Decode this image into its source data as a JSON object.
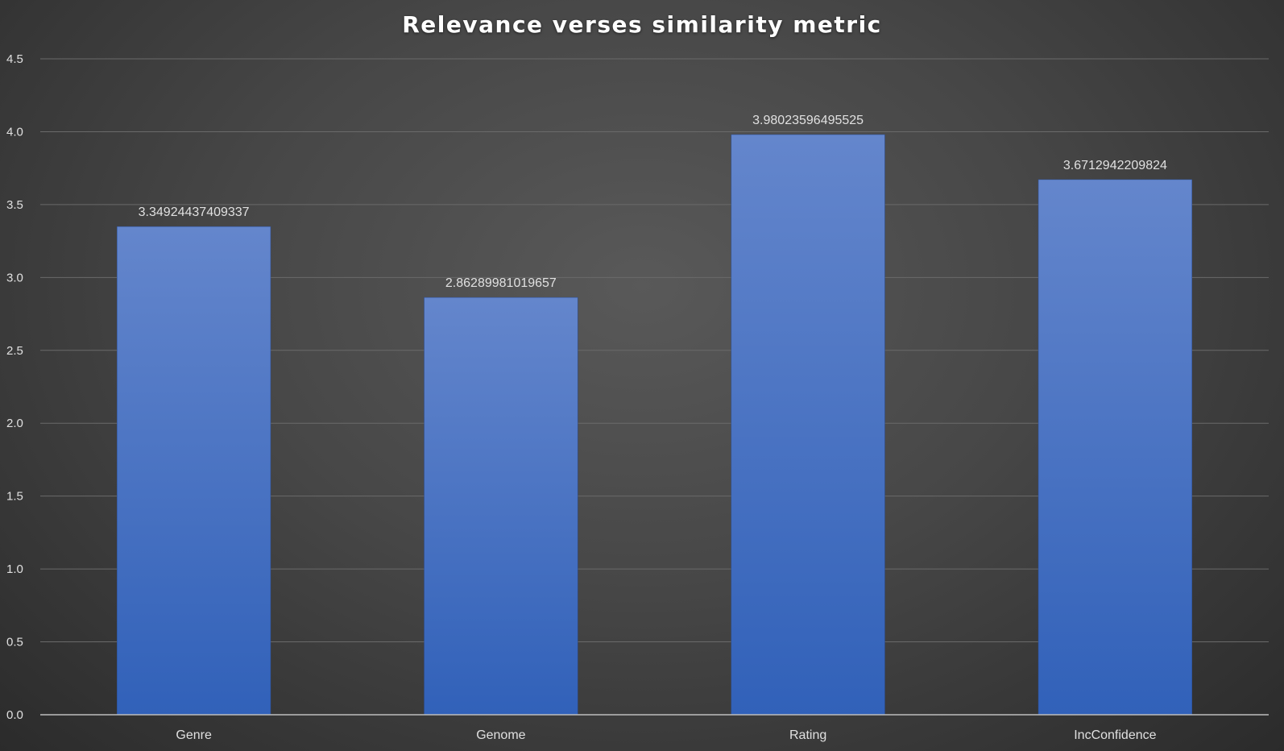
{
  "chart_data": {
    "type": "bar",
    "title": "Relevance verses similarity metric",
    "xlabel": "",
    "ylabel": "",
    "categories": [
      "Genre",
      "Genome",
      "Rating",
      "IncConfidence"
    ],
    "values": [
      3.34924437409337,
      2.86289981019657,
      3.98023596495525,
      3.6712942209824
    ],
    "data_labels": [
      "3.34924437409337",
      "2.86289981019657",
      "3.98023596495525",
      "3.6712942209824"
    ],
    "ylim": [
      0,
      4.5
    ],
    "yticks": [
      "0.0",
      "0.5",
      "1.0",
      "1.5",
      "2.0",
      "2.5",
      "3.0",
      "3.5",
      "4.0",
      "4.5"
    ],
    "grid": true,
    "legend": "none",
    "colors": {
      "bar_top": "#6486cc",
      "bar_bottom": "#3161b9",
      "gridline": "#6a6a6a",
      "axis": "#bdbdbd",
      "text": "#e0e0e0",
      "title": "#ffffff"
    }
  }
}
